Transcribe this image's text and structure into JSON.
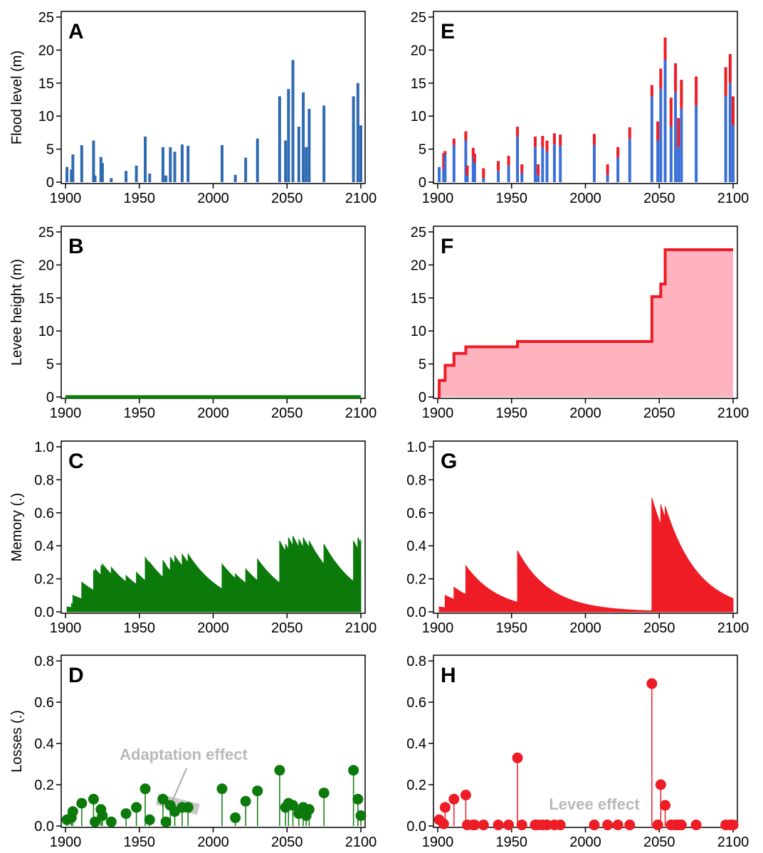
{
  "colors": {
    "blue": "#3a6fd8",
    "blue_dark": "#2f6ab0",
    "red": "#ee1c25",
    "red_fill": "#ffb3bf",
    "green": "#0b7a0b",
    "gray": "#c8c8c8",
    "gray_text": "#b9b9b9",
    "axis": "#000000"
  },
  "row_labels": {
    "flood": "Flood level (m)",
    "levee": "Levee height (m)",
    "memory": "Memory (.)",
    "losses": "Losses (.)"
  },
  "panel_letters": [
    "A",
    "B",
    "C",
    "D",
    "E",
    "F",
    "G",
    "H"
  ],
  "annotations": {
    "adaptation": "Adaptation effect",
    "levee": "Levee effect"
  },
  "x_axis": {
    "range": [
      1900,
      2100
    ],
    "ticks": [
      1900,
      1950,
      2000,
      2050,
      2100
    ]
  },
  "y_axes": {
    "flood": {
      "range": [
        0,
        25
      ],
      "ticks": [
        0,
        5,
        10,
        15,
        20,
        25
      ]
    },
    "levee": {
      "range": [
        0,
        25
      ],
      "ticks": [
        0,
        5,
        10,
        15,
        20,
        25
      ]
    },
    "memory": {
      "range": [
        0,
        1
      ],
      "ticks": [
        "0.0",
        "0.2",
        "0.4",
        "0.6",
        "0.8",
        "1.0"
      ]
    },
    "losses": {
      "range": [
        0,
        0.8
      ],
      "ticks": [
        "0.0",
        "0.2",
        "0.4",
        "0.6",
        "0.8"
      ]
    }
  },
  "chart_data": [
    {
      "panel": "A",
      "type": "bar",
      "ylabel": "Flood level (m)",
      "ylim": [
        0,
        25
      ],
      "x": [
        1901,
        1904,
        1905,
        1911,
        1919,
        1920,
        1924,
        1925,
        1931,
        1941,
        1948,
        1954,
        1957,
        1966,
        1968,
        1971,
        1974,
        1979,
        1983,
        2006,
        2015,
        2022,
        2030,
        2045,
        2049,
        2051,
        2054,
        2058,
        2061,
        2063,
        2065,
        2075,
        2095,
        2098,
        2100
      ],
      "values": [
        2.3,
        1.9,
        4.2,
        5.6,
        6.3,
        1.0,
        3.8,
        2.9,
        0.6,
        1.7,
        2.5,
        6.9,
        1.3,
        5.3,
        1.0,
        5.3,
        4.6,
        5.7,
        5.5,
        5.6,
        1.1,
        3.7,
        6.6,
        13.0,
        6.3,
        14.1,
        18.5,
        8.4,
        13.6,
        5.3,
        11.1,
        11.6,
        13.0,
        15.0,
        8.6
      ]
    },
    {
      "panel": "E",
      "type": "bar",
      "series": [
        {
          "name": "flood",
          "values": [
            2.3,
            1.9,
            4.2,
            5.6,
            6.3,
            1.0,
            3.8,
            2.9,
            0.6,
            1.7,
            2.5,
            6.9,
            1.3,
            5.3,
            1.0,
            5.3,
            4.6,
            5.7,
            5.5,
            5.6,
            1.1,
            3.7,
            6.6,
            13.0,
            6.3,
            14.1,
            18.5,
            8.4,
            13.6,
            5.3,
            11.1,
            11.6,
            13.0,
            15.0,
            8.6
          ]
        },
        {
          "name": "levee",
          "values": [
            0,
            2.5,
            0.5,
            1.0,
            1.4,
            1.5,
            1.4,
            1.4,
            1.5,
            1.5,
            1.5,
            1.5,
            1.4,
            1.6,
            1.7,
            1.7,
            1.7,
            1.7,
            1.7,
            1.7,
            1.6,
            1.6,
            1.7,
            1.7,
            2.9,
            3.1,
            3.4,
            4.4,
            4.4,
            4.4,
            4.4,
            4.4,
            4.4,
            4.4,
            4.4
          ]
        }
      ],
      "x": [
        1901,
        1904,
        1905,
        1911,
        1919,
        1920,
        1924,
        1925,
        1931,
        1941,
        1948,
        1954,
        1957,
        1966,
        1968,
        1971,
        1974,
        1979,
        1983,
        2006,
        2015,
        2022,
        2030,
        2045,
        2049,
        2051,
        2054,
        2058,
        2061,
        2063,
        2065,
        2075,
        2095,
        2098,
        2100
      ],
      "ylim": [
        0,
        25
      ]
    },
    {
      "panel": "B",
      "type": "line",
      "ylabel": "Levee height (m)",
      "ylim": [
        0,
        25
      ],
      "x": [
        1900,
        2100
      ],
      "y": [
        0,
        0
      ]
    },
    {
      "panel": "F",
      "type": "area",
      "ylim": [
        0,
        25
      ],
      "steps": [
        [
          1900,
          0
        ],
        [
          1901,
          2.5
        ],
        [
          1905,
          4.8
        ],
        [
          1911,
          6.6
        ],
        [
          1919,
          7.6
        ],
        [
          1954,
          8.4
        ],
        [
          2045,
          15.2
        ],
        [
          2051,
          17.1
        ],
        [
          2054,
          22.3
        ],
        [
          2100,
          22.3
        ]
      ]
    },
    {
      "panel": "C",
      "type": "area",
      "ylabel": "Memory (.)",
      "ylim": [
        0,
        1
      ],
      "x": [
        1901,
        1904,
        1905,
        1911,
        1919,
        1920,
        1924,
        1925,
        1931,
        1941,
        1948,
        1954,
        1957,
        1966,
        1968,
        1971,
        1974,
        1979,
        1983,
        2006,
        2015,
        2022,
        2030,
        2045,
        2049,
        2051,
        2054,
        2058,
        2061,
        2063,
        2065,
        2075,
        2095,
        2098,
        2100
      ],
      "peaks": [
        0.03,
        0.05,
        0.1,
        0.18,
        0.25,
        0.26,
        0.28,
        0.29,
        0.27,
        0.22,
        0.24,
        0.33,
        0.3,
        0.31,
        0.28,
        0.33,
        0.34,
        0.35,
        0.35,
        0.29,
        0.23,
        0.26,
        0.32,
        0.43,
        0.41,
        0.45,
        0.46,
        0.44,
        0.45,
        0.42,
        0.43,
        0.41,
        0.43,
        0.45,
        0.44
      ],
      "decay": 0.04
    },
    {
      "panel": "G",
      "type": "area",
      "ylim": [
        0,
        1
      ],
      "x": [
        1901,
        1905,
        1911,
        1919,
        1954,
        2045,
        2051,
        2054
      ],
      "peaks": [
        0.03,
        0.1,
        0.15,
        0.28,
        0.37,
        0.69,
        0.65,
        0.64
      ],
      "decay": 0.045
    },
    {
      "panel": "D",
      "type": "scatter",
      "ylabel": "Losses (.)",
      "ylim": [
        0,
        0.8
      ],
      "x": [
        1901,
        1904,
        1905,
        1911,
        1919,
        1920,
        1924,
        1925,
        1931,
        1941,
        1948,
        1954,
        1957,
        1966,
        1968,
        1971,
        1974,
        1979,
        1983,
        2006,
        2015,
        2022,
        2030,
        2045,
        2049,
        2051,
        2054,
        2058,
        2061,
        2063,
        2065,
        2075,
        2095,
        2098,
        2100
      ],
      "values": [
        0.03,
        0.04,
        0.07,
        0.11,
        0.13,
        0.02,
        0.08,
        0.05,
        0.02,
        0.06,
        0.09,
        0.18,
        0.03,
        0.13,
        0.02,
        0.1,
        0.07,
        0.09,
        0.09,
        0.18,
        0.04,
        0.12,
        0.17,
        0.27,
        0.09,
        0.11,
        0.1,
        0.06,
        0.09,
        0.05,
        0.08,
        0.16,
        0.27,
        0.13,
        0.05
      ]
    },
    {
      "panel": "H",
      "type": "scatter",
      "ylim": [
        0,
        0.8
      ],
      "x": [
        1901,
        1904,
        1905,
        1911,
        1919,
        1920,
        1924,
        1925,
        1931,
        1941,
        1948,
        1954,
        1957,
        1966,
        1968,
        1971,
        1974,
        1979,
        1983,
        2006,
        2015,
        2022,
        2030,
        2045,
        2049,
        2051,
        2054,
        2058,
        2061,
        2063,
        2065,
        2075,
        2095,
        2098,
        2100
      ],
      "values": [
        0.03,
        0.01,
        0.09,
        0.13,
        0.15,
        0.005,
        0.005,
        0.005,
        0.005,
        0.005,
        0.005,
        0.33,
        0.005,
        0.005,
        0.005,
        0.005,
        0.005,
        0.005,
        0.005,
        0.005,
        0.005,
        0.005,
        0.005,
        0.69,
        0.005,
        0.2,
        0.1,
        0.005,
        0.005,
        0.005,
        0.005,
        0.005,
        0.005,
        0.005,
        0.005
      ]
    }
  ]
}
